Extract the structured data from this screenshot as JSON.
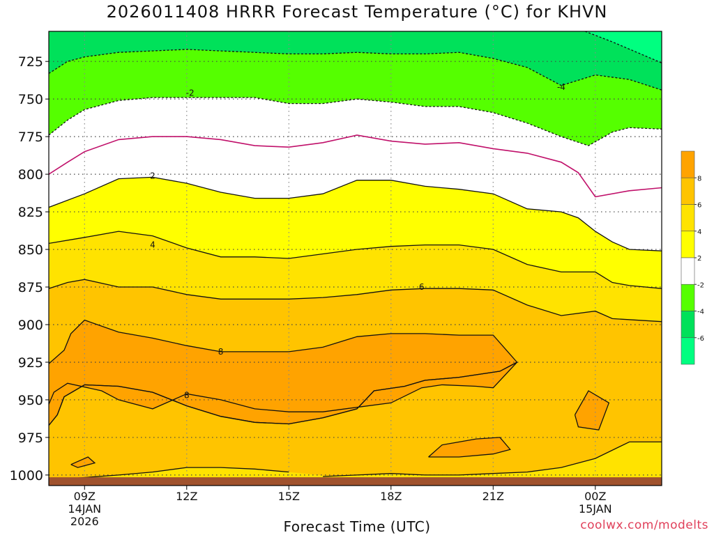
{
  "chart_data": {
    "type": "contour",
    "title": "2026011408 HRRR Forecast Temperature (°C) for KHVN",
    "xlabel": "Forecast Time (UTC)",
    "ylabel": "",
    "credit": "coolwx.com/modelts",
    "x_range_hours": [
      7.95,
      25.95
    ],
    "y_range_hpa": [
      705,
      1007
    ],
    "x_ticks": [
      {
        "hour": 9,
        "lines": [
          "09Z",
          "14JAN",
          "2026"
        ]
      },
      {
        "hour": 12,
        "lines": [
          "12Z"
        ]
      },
      {
        "hour": 15,
        "lines": [
          "15Z"
        ]
      },
      {
        "hour": 18,
        "lines": [
          "18Z"
        ]
      },
      {
        "hour": 21,
        "lines": [
          "21Z"
        ]
      },
      {
        "hour": 24,
        "lines": [
          "00Z",
          "15JAN"
        ]
      }
    ],
    "y_ticks": [
      725,
      750,
      775,
      800,
      825,
      850,
      875,
      900,
      925,
      950,
      975,
      1000
    ],
    "fill_levels": [
      {
        "range": "<-6",
        "color": "#00ff80"
      },
      {
        "range": "-6..-4",
        "color": "#00e15a"
      },
      {
        "range": "-4..-2",
        "color": "#55ff00"
      },
      {
        "range": "-2..2",
        "color": "#ffffff"
      },
      {
        "range": "2..4",
        "color": "#ffff00"
      },
      {
        "range": "4..6",
        "color": "#ffe300"
      },
      {
        "range": "6..8",
        "color": "#ffc400"
      },
      {
        "range": ">8",
        "color": "#ffa300"
      }
    ],
    "colorbar_labels": [
      "-6",
      "-4",
      "-2",
      "2",
      "4",
      "6",
      "8"
    ],
    "ground_color": "#a0522d",
    "contours": [
      {
        "level": -6,
        "label": "",
        "points": [
          [
            23.7,
            705
          ],
          [
            24.5,
            712
          ],
          [
            25.95,
            726
          ]
        ]
      },
      {
        "level": -4,
        "label": "-4",
        "label_at": [
          23.0,
          742
        ],
        "points": [
          [
            7.95,
            733
          ],
          [
            8.5,
            725
          ],
          [
            9,
            722
          ],
          [
            10,
            719
          ],
          [
            11,
            718
          ],
          [
            12,
            717
          ],
          [
            13,
            718
          ],
          [
            14,
            719
          ],
          [
            15,
            720
          ],
          [
            16,
            720
          ],
          [
            17,
            719
          ],
          [
            18,
            720
          ],
          [
            19,
            720
          ],
          [
            20,
            719
          ],
          [
            21,
            723
          ],
          [
            22,
            729
          ],
          [
            23,
            741
          ],
          [
            24,
            734
          ],
          [
            25,
            737
          ],
          [
            25.95,
            744
          ]
        ]
      },
      {
        "level": -2,
        "label": "-2",
        "label_at": [
          12.1,
          746
        ],
        "points": [
          [
            7.95,
            774
          ],
          [
            8.5,
            764
          ],
          [
            9,
            757
          ],
          [
            10,
            751
          ],
          [
            11,
            749
          ],
          [
            12,
            749
          ],
          [
            13,
            749
          ],
          [
            14,
            749
          ],
          [
            15,
            753
          ],
          [
            16,
            753
          ],
          [
            17,
            750
          ],
          [
            18,
            752
          ],
          [
            19,
            755
          ],
          [
            20,
            755
          ],
          [
            21,
            759
          ],
          [
            22,
            766
          ],
          [
            23,
            775
          ],
          [
            23.8,
            781
          ],
          [
            24.5,
            772
          ],
          [
            25,
            769
          ],
          [
            25.95,
            770
          ]
        ]
      },
      {
        "level": 0,
        "label": "",
        "points": [
          [
            7.95,
            800
          ],
          [
            8.5,
            792
          ],
          [
            9,
            785
          ],
          [
            10,
            777
          ],
          [
            11,
            775
          ],
          [
            12,
            775
          ],
          [
            13,
            777
          ],
          [
            14,
            781
          ],
          [
            15,
            782
          ],
          [
            16,
            779
          ],
          [
            17,
            774
          ],
          [
            18,
            778
          ],
          [
            19,
            780
          ],
          [
            20,
            779
          ],
          [
            21,
            783
          ],
          [
            22,
            786
          ],
          [
            23,
            792
          ],
          [
            23.5,
            799
          ],
          [
            24,
            815
          ],
          [
            25,
            811
          ],
          [
            25.95,
            809
          ]
        ]
      },
      {
        "level": 2,
        "label": "2",
        "label_at": [
          11.0,
          801
        ],
        "points": [
          [
            7.95,
            822
          ],
          [
            9,
            813
          ],
          [
            10,
            803
          ],
          [
            11,
            802
          ],
          [
            12,
            806
          ],
          [
            13,
            812
          ],
          [
            14,
            816
          ],
          [
            15,
            816
          ],
          [
            16,
            813
          ],
          [
            17,
            804
          ],
          [
            18,
            804
          ],
          [
            19,
            808
          ],
          [
            20,
            810
          ],
          [
            21,
            813
          ],
          [
            22,
            823
          ],
          [
            23,
            825
          ],
          [
            23.5,
            829
          ],
          [
            24,
            838
          ],
          [
            24.5,
            845
          ],
          [
            25,
            850
          ],
          [
            25.95,
            851
          ]
        ]
      },
      {
        "level": 4,
        "label": "4",
        "label_at": [
          11.0,
          847
        ],
        "points": [
          [
            7.95,
            846
          ],
          [
            9,
            842
          ],
          [
            10,
            838
          ],
          [
            11,
            841
          ],
          [
            12,
            849
          ],
          [
            13,
            855
          ],
          [
            14,
            855
          ],
          [
            15,
            856
          ],
          [
            16,
            853
          ],
          [
            17,
            850
          ],
          [
            18,
            848
          ],
          [
            19,
            847
          ],
          [
            20,
            847
          ],
          [
            21,
            850
          ],
          [
            22,
            860
          ],
          [
            23,
            865
          ],
          [
            24,
            865
          ],
          [
            24.5,
            872
          ],
          [
            25,
            874
          ],
          [
            25.95,
            876
          ]
        ]
      },
      {
        "level": 6,
        "label": "6",
        "label_at": [
          18.9,
          875
        ],
        "points": [
          [
            7.95,
            876
          ],
          [
            8.5,
            872
          ],
          [
            9,
            870
          ],
          [
            10,
            875
          ],
          [
            11,
            875
          ],
          [
            12,
            880
          ],
          [
            13,
            883
          ],
          [
            14,
            883
          ],
          [
            15,
            883
          ],
          [
            16,
            882
          ],
          [
            17,
            880
          ],
          [
            18,
            877
          ],
          [
            19,
            876
          ],
          [
            20,
            876
          ],
          [
            21,
            877
          ],
          [
            22,
            887
          ],
          [
            23,
            894
          ],
          [
            24,
            891
          ],
          [
            24.5,
            896
          ],
          [
            25.95,
            898
          ]
        ]
      },
      {
        "level": 8,
        "label": "8",
        "label_at": [
          13.0,
          918
        ],
        "points": [
          [
            7.95,
            926
          ],
          [
            8.4,
            917
          ],
          [
            8.6,
            906
          ],
          [
            9,
            897
          ],
          [
            10,
            905
          ],
          [
            11,
            909
          ],
          [
            12,
            914
          ],
          [
            13,
            918
          ],
          [
            14,
            918
          ],
          [
            15,
            918
          ],
          [
            16,
            915
          ],
          [
            17,
            908
          ],
          [
            18,
            906
          ],
          [
            19,
            906
          ],
          [
            20,
            907
          ],
          [
            21,
            907
          ],
          [
            21.7,
            925
          ],
          [
            21.2,
            931
          ],
          [
            20,
            935
          ],
          [
            19,
            937
          ],
          [
            18.4,
            941
          ],
          [
            17.5,
            944
          ],
          [
            17,
            956
          ],
          [
            16,
            962
          ],
          [
            15,
            966
          ],
          [
            14,
            965
          ],
          [
            13,
            961
          ],
          [
            12,
            954
          ],
          [
            11,
            945
          ],
          [
            10,
            941
          ],
          [
            9,
            940
          ],
          [
            8.4,
            948
          ],
          [
            8.2,
            960
          ],
          [
            7.95,
            967
          ]
        ]
      },
      {
        "level": 8,
        "label": "8",
        "label_at": [
          12.0,
          947
        ],
        "points": [
          [
            7.95,
            953
          ],
          [
            8.1,
            945
          ],
          [
            8.5,
            939
          ],
          [
            9.5,
            944
          ],
          [
            10,
            950
          ],
          [
            11,
            956
          ],
          [
            11.5,
            951
          ],
          [
            12,
            946
          ],
          [
            13,
            950
          ],
          [
            14,
            956
          ],
          [
            15,
            958
          ],
          [
            16,
            958
          ],
          [
            17,
            955
          ],
          [
            18,
            952
          ],
          [
            18.9,
            942
          ],
          [
            19.5,
            940
          ],
          [
            20.5,
            941
          ],
          [
            21,
            942
          ],
          [
            21.7,
            925
          ],
          [
            21.2,
            931
          ],
          [
            20,
            935
          ],
          [
            19,
            937
          ],
          [
            18.4,
            941
          ],
          [
            17.5,
            944
          ],
          [
            17,
            956
          ],
          [
            16,
            962
          ],
          [
            15,
            966
          ],
          [
            14,
            965
          ],
          [
            13,
            961
          ],
          [
            12,
            954
          ],
          [
            11,
            945
          ],
          [
            10,
            941
          ],
          [
            9,
            940
          ],
          [
            8.4,
            948
          ],
          [
            8.2,
            960
          ],
          [
            7.95,
            967
          ]
        ]
      },
      {
        "level": 8,
        "label": "",
        "points": [
          [
            23.4,
            960
          ],
          [
            23.8,
            944
          ],
          [
            24.4,
            952
          ],
          [
            24.1,
            970
          ],
          [
            23.5,
            968
          ],
          [
            23.4,
            960
          ]
        ]
      },
      {
        "level": 8,
        "label": "",
        "points": [
          [
            19.1,
            988
          ],
          [
            19.5,
            980
          ],
          [
            20.5,
            976
          ],
          [
            21.2,
            975
          ],
          [
            21.5,
            983
          ],
          [
            21,
            986
          ],
          [
            20,
            988
          ],
          [
            19.1,
            988
          ]
        ]
      },
      {
        "level": 8,
        "label": "",
        "points": [
          [
            8.6,
            993
          ],
          [
            9.1,
            988
          ],
          [
            9.3,
            992
          ],
          [
            8.8,
            995
          ],
          [
            8.6,
            993
          ]
        ]
      },
      {
        "level": 6,
        "label": "",
        "points": [
          [
            8.8,
            1002
          ],
          [
            10,
            1000
          ],
          [
            11,
            998
          ],
          [
            12,
            995
          ],
          [
            13,
            995
          ],
          [
            14,
            996
          ],
          [
            15,
            998
          ]
        ]
      },
      {
        "level": 6,
        "label": "",
        "points": [
          [
            16,
            1001
          ],
          [
            17,
            1000
          ],
          [
            18,
            999
          ],
          [
            19,
            1000
          ],
          [
            20,
            1000
          ],
          [
            21,
            999
          ],
          [
            22,
            998
          ],
          [
            23,
            995
          ],
          [
            24,
            989
          ],
          [
            25,
            978
          ],
          [
            25.95,
            978
          ]
        ]
      }
    ]
  }
}
